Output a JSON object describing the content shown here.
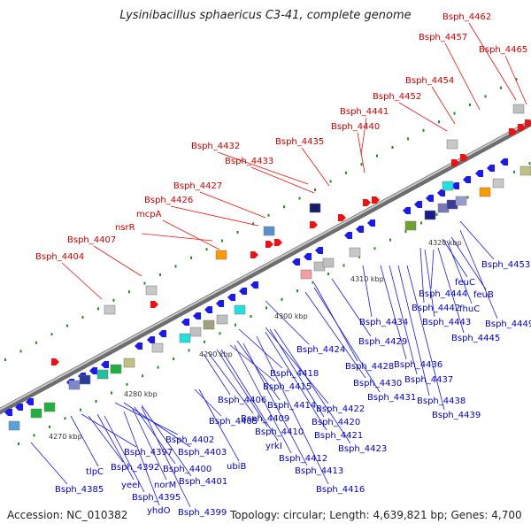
{
  "title": "Lysinibacillus sphaericus C3-41, complete genome",
  "accession": "Accession: NC_010382",
  "summary": "Topology: circular; Length: 4,639,821 bp; Genes: 4,700",
  "kbp_labels": [
    "4270 kbp",
    "4280 kbp",
    "4290 kbp",
    "4300 kbp",
    "4310 kbp",
    "4320 kbp"
  ],
  "red_labels": [
    "Bsph_4404",
    "Bsph_4407",
    "nsrR",
    "mcpA",
    "Bsph_4426",
    "Bsph_4427",
    "Bsph_4433",
    "Bsph_4432",
    "Bsph_4435",
    "Bsph_4440",
    "Bsph_4441",
    "Bsph_4452",
    "Bsph_4454",
    "Bsph_4457",
    "Bsph_4462",
    "Bsph_4465"
  ],
  "blue_labels": [
    "Bsph_4385",
    "tlpC",
    "yeeI",
    "Bsph_4392",
    "yhdO",
    "Bsph_4395",
    "norM",
    "Bsph_4397",
    "Bsph_4399",
    "Bsph_4400",
    "Bsph_4401",
    "Bsph_4402",
    "Bsph_4403",
    "ubiB",
    "Bsph_4405",
    "Bsph_4406",
    "Bsph_4409",
    "yrkI",
    "Bsph_4410",
    "Bsph_4412",
    "Bsph_4413",
    "Bsph_4414",
    "Bsph_4415",
    "Bsph_4416",
    "Bsph_4418",
    "Bsph_4420",
    "Bsph_4421",
    "Bsph_4422",
    "Bsph_4423",
    "Bsph_4424",
    "Bsph_4428",
    "Bsph_4429",
    "Bsph_4430",
    "Bsph_4431",
    "Bsph_4434",
    "Bsph_4436",
    "Bsph_4437",
    "Bsph_4438",
    "Bsph_4439",
    "Bsph_4442",
    "Bsph_4443",
    "Bsph_4444",
    "Bsph_4445",
    "Bsph_4449",
    "Bsph_4453",
    "feuC",
    "feuB",
    "fhuC"
  ],
  "colors": {
    "forward": "#ee1111",
    "reverse": "#1a1aee",
    "backbone": "#8a8a8a",
    "ticks": "#228b22",
    "label_forward": "#cc0000",
    "label_reverse": "#0000cc"
  }
}
